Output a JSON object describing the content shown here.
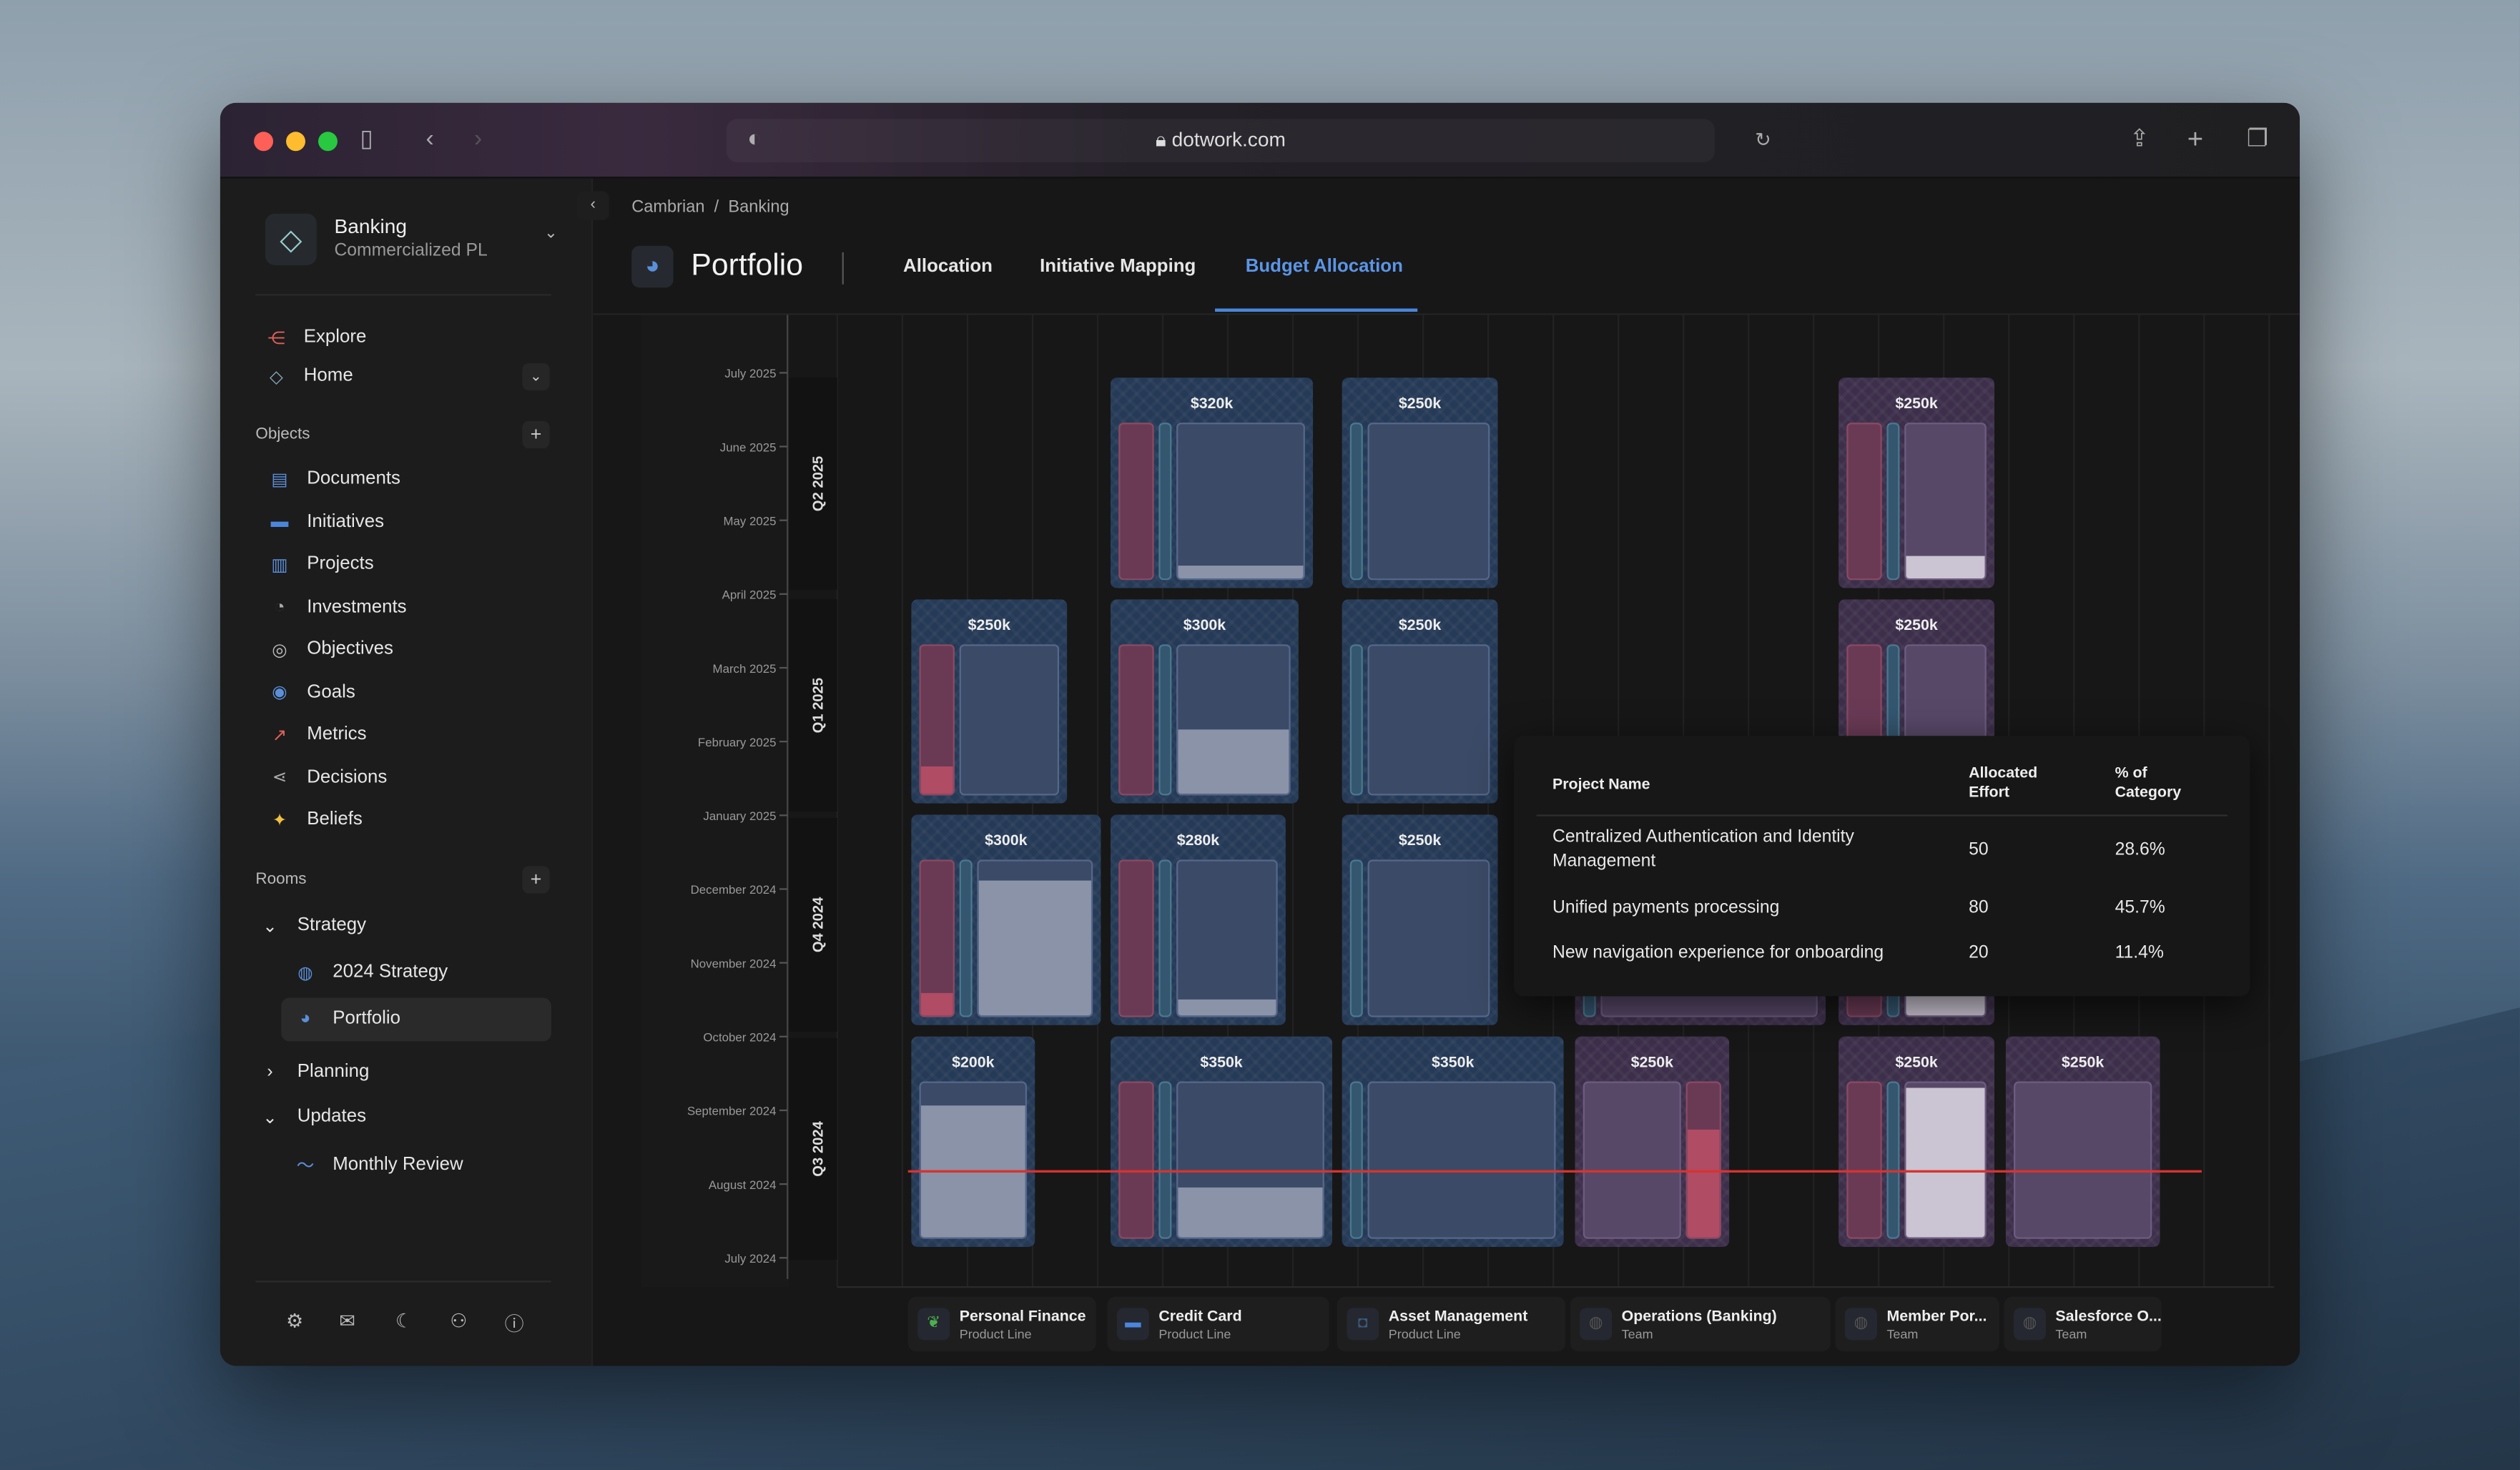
{
  "browser": {
    "url": "dotwork.com"
  },
  "workspace": {
    "name": "Banking",
    "subtitle": "Commercialized PL"
  },
  "nav": [
    {
      "label": "Explore",
      "icon": "share-icon"
    },
    {
      "label": "Home",
      "icon": "home-icon"
    }
  ],
  "objects": {
    "title": "Objects",
    "items": [
      {
        "label": "Documents",
        "icon": "document-icon"
      },
      {
        "label": "Initiatives",
        "icon": "initiative-icon"
      },
      {
        "label": "Projects",
        "icon": "project-icon"
      },
      {
        "label": "Investments",
        "icon": "pie-icon"
      },
      {
        "label": "Objectives",
        "icon": "target-icon"
      },
      {
        "label": "Goals",
        "icon": "goal-icon"
      },
      {
        "label": "Metrics",
        "icon": "metrics-icon"
      },
      {
        "label": "Decisions",
        "icon": "decision-icon"
      },
      {
        "label": "Beliefs",
        "icon": "sparkle-icon"
      }
    ]
  },
  "rooms": {
    "title": "Rooms",
    "strategy": "Strategy",
    "strategy_items": [
      "2024 Strategy",
      "Portfolio"
    ],
    "planning": "Planning",
    "updates": "Updates",
    "updates_items": [
      "Monthly Review"
    ]
  },
  "breadcrumb": [
    "Cambrian",
    "Banking"
  ],
  "page": {
    "title": "Portfolio",
    "tabs": [
      "Allocation",
      "Initiative Mapping",
      "Budget Allocation"
    ],
    "active_tab": "Budget Allocation"
  },
  "chart": {
    "months": [
      "July 2025",
      "June 2025",
      "May 2025",
      "April 2025",
      "March 2025",
      "February 2025",
      "January 2025",
      "December 2024",
      "November 2024",
      "October 2024",
      "September 2024",
      "August 2024",
      "July 2024"
    ],
    "quarters": [
      "Q2 2025",
      "Q1 2025",
      "Q4 2024",
      "Q3 2024"
    ],
    "blocks": [
      {
        "quarter": "Q2 2025",
        "label": "$320k",
        "theme": "blue",
        "bars": [
          {
            "t": "red",
            "f": 0
          },
          {
            "t": "teal",
            "f": 0
          },
          {
            "t": "main",
            "f": 0.08
          }
        ]
      },
      {
        "quarter": "Q2 2025",
        "label": "$250k",
        "theme": "blue",
        "bars": [
          {
            "t": "teal",
            "f": 0
          },
          {
            "t": "main",
            "f": 0
          }
        ]
      },
      {
        "quarter": "Q2 2025",
        "label": "$250k",
        "theme": "purple",
        "bars": [
          {
            "t": "red",
            "f": 0
          },
          {
            "t": "teal",
            "f": 0
          },
          {
            "t": "main",
            "f": 0.15
          }
        ]
      },
      {
        "quarter": "Q1 2025",
        "label": "$250k",
        "theme": "blue",
        "bars": [
          {
            "t": "red",
            "f": 0.18
          },
          {
            "t": "main",
            "f": 0
          }
        ]
      },
      {
        "quarter": "Q1 2025",
        "label": "$300k",
        "theme": "blue",
        "bars": [
          {
            "t": "red",
            "f": 0
          },
          {
            "t": "teal",
            "f": 0
          },
          {
            "t": "main",
            "f": 0.43
          }
        ]
      },
      {
        "quarter": "Q1 2025",
        "label": "$250k",
        "theme": "blue",
        "bars": [
          {
            "t": "teal",
            "f": 0
          },
          {
            "t": "main",
            "f": 0
          }
        ]
      },
      {
        "quarter": "Q1 2025",
        "label": "$250k",
        "theme": "purple",
        "bars": [
          {
            "t": "red",
            "f": 0
          },
          {
            "t": "teal",
            "f": 0
          },
          {
            "t": "main",
            "f": 0
          }
        ]
      },
      {
        "quarter": "Q4 2024",
        "label": "$300k",
        "theme": "blue",
        "bars": [
          {
            "t": "red",
            "f": 0.15
          },
          {
            "t": "teal",
            "f": 0
          },
          {
            "t": "main",
            "f": 0.88
          }
        ]
      },
      {
        "quarter": "Q4 2024",
        "label": "$280k",
        "theme": "blue",
        "bars": [
          {
            "t": "red",
            "f": 0
          },
          {
            "t": "teal",
            "f": 0
          },
          {
            "t": "main",
            "f": 0.1
          }
        ]
      },
      {
        "quarter": "Q4 2024",
        "label": "$250k",
        "theme": "blue",
        "bars": [
          {
            "t": "teal",
            "f": 0
          },
          {
            "t": "main",
            "f": 0
          }
        ]
      },
      {
        "quarter": "Q4 2024",
        "label": "",
        "theme": "purple",
        "bars": [
          {
            "t": "teal",
            "f": 0
          },
          {
            "t": "main",
            "f": 0
          }
        ]
      },
      {
        "quarter": "Q4 2024",
        "label": "",
        "theme": "purple",
        "bars": [
          {
            "t": "red",
            "f": 0
          },
          {
            "t": "teal",
            "f": 0
          },
          {
            "t": "main",
            "f": 0.2
          }
        ]
      },
      {
        "quarter": "Q3 2024",
        "label": "$200k",
        "theme": "blue",
        "bars": [
          {
            "t": "main",
            "f": 0.85
          }
        ]
      },
      {
        "quarter": "Q3 2024",
        "label": "$350k",
        "theme": "blue",
        "bars": [
          {
            "t": "red",
            "f": 0
          },
          {
            "t": "teal",
            "f": 0
          },
          {
            "t": "main",
            "f": 0.32
          }
        ]
      },
      {
        "quarter": "Q3 2024",
        "label": "$350k",
        "theme": "blue",
        "bars": [
          {
            "t": "teal",
            "f": 0
          },
          {
            "t": "main",
            "f": 0
          }
        ]
      },
      {
        "quarter": "Q3 2024",
        "label": "$250k",
        "theme": "purple",
        "bars": [
          {
            "t": "main",
            "f": 0
          },
          {
            "t": "red",
            "f": 0.7
          }
        ]
      },
      {
        "quarter": "Q3 2024",
        "label": "$250k",
        "theme": "purple",
        "bars": [
          {
            "t": "red",
            "f": 0
          },
          {
            "t": "teal",
            "f": 0
          },
          {
            "t": "main",
            "f": 0.97
          }
        ]
      },
      {
        "quarter": "Q3 2024",
        "label": "$250k",
        "theme": "purple",
        "bars": [
          {
            "t": "main",
            "f": 0
          }
        ]
      }
    ]
  },
  "tooltip": {
    "headers": [
      "Project Name",
      "Allocated Effort",
      "% of Category"
    ],
    "rows": [
      [
        "Centralized Authentication and Identity Management",
        "50",
        "28.6%"
      ],
      [
        "Unified payments processing",
        "80",
        "45.7%"
      ],
      [
        "New navigation experience for onboarding",
        "20",
        "11.4%"
      ]
    ]
  },
  "legend": [
    {
      "name": "Personal Finance",
      "type": "Product Line",
      "color": "#4caf50"
    },
    {
      "name": "Credit Card",
      "type": "Product Line",
      "color": "#4a86dc"
    },
    {
      "name": "Asset Management",
      "type": "Product Line",
      "color": "#3b5a7a"
    },
    {
      "name": "Operations (Banking)",
      "type": "Team",
      "color": "#555"
    },
    {
      "name": "Member Por...",
      "type": "Team",
      "color": "#555"
    },
    {
      "name": "Salesforce O...",
      "type": "Team",
      "color": "#555"
    }
  ]
}
